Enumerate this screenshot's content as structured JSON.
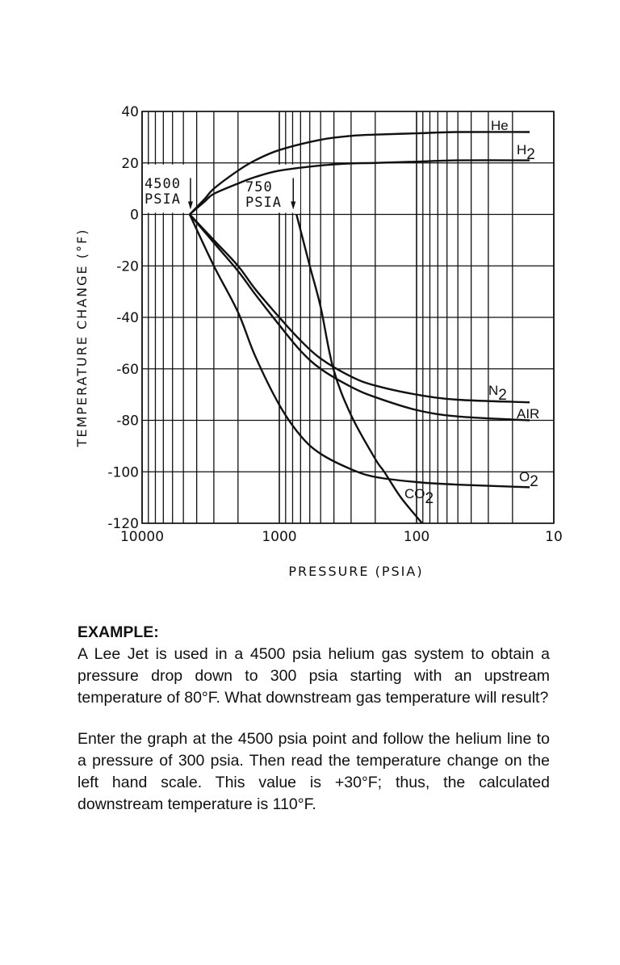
{
  "chart_data": {
    "type": "line",
    "xlabel": "PRESSURE (PSIA)",
    "ylabel": "TEMPERATURE CHANGE (°F)",
    "x_scale": "log",
    "x_reversed": true,
    "xlim": [
      10000,
      10
    ],
    "ylim": [
      -120,
      40
    ],
    "x_ticks": [
      "10000",
      "1000",
      "100",
      "10"
    ],
    "y_ticks": [
      "40",
      "20",
      "0",
      "-20",
      "-40",
      "-60",
      "-80",
      "-100",
      "-120"
    ],
    "grid": true,
    "annotations": [
      {
        "text": [
          "4500",
          "PSIA"
        ],
        "x": 4500,
        "y": 0
      },
      {
        "text": [
          "750",
          "PSIA"
        ],
        "x": 750,
        "y": 0
      }
    ],
    "series": [
      {
        "name": "He",
        "sub": "",
        "points": [
          [
            4500,
            0
          ],
          [
            3500,
            6
          ],
          [
            3000,
            10
          ],
          [
            2000,
            17
          ],
          [
            1500,
            21
          ],
          [
            1000,
            25
          ],
          [
            500,
            29
          ],
          [
            300,
            30.5
          ],
          [
            200,
            31
          ],
          [
            100,
            31.5
          ],
          [
            50,
            32
          ],
          [
            15,
            32
          ]
        ]
      },
      {
        "name": "H",
        "sub": "2",
        "points": [
          [
            4500,
            0
          ],
          [
            3500,
            5
          ],
          [
            3000,
            8
          ],
          [
            2000,
            12
          ],
          [
            1500,
            14.5
          ],
          [
            1000,
            17
          ],
          [
            500,
            19
          ],
          [
            300,
            19.8
          ],
          [
            200,
            20
          ],
          [
            100,
            20.5
          ],
          [
            50,
            21
          ],
          [
            15,
            21
          ]
        ]
      },
      {
        "name": "N",
        "sub": "2",
        "points": [
          [
            4500,
            0
          ],
          [
            3000,
            -10
          ],
          [
            2000,
            -20
          ],
          [
            1500,
            -29
          ],
          [
            1000,
            -40
          ],
          [
            700,
            -49
          ],
          [
            500,
            -56
          ],
          [
            300,
            -63
          ],
          [
            200,
            -66.5
          ],
          [
            100,
            -70
          ],
          [
            50,
            -72
          ],
          [
            15,
            -73
          ]
        ]
      },
      {
        "name": "AIR",
        "sub": "",
        "points": [
          [
            4500,
            0
          ],
          [
            3000,
            -11
          ],
          [
            2000,
            -22
          ],
          [
            1500,
            -31
          ],
          [
            1000,
            -43
          ],
          [
            700,
            -53
          ],
          [
            500,
            -60
          ],
          [
            300,
            -67
          ],
          [
            200,
            -71
          ],
          [
            100,
            -76
          ],
          [
            50,
            -78.5
          ],
          [
            15,
            -80
          ]
        ]
      },
      {
        "name": "O",
        "sub": "2",
        "points": [
          [
            4500,
            0
          ],
          [
            3000,
            -20
          ],
          [
            2000,
            -38
          ],
          [
            1500,
            -55
          ],
          [
            1000,
            -74
          ],
          [
            700,
            -86
          ],
          [
            500,
            -93
          ],
          [
            300,
            -99
          ],
          [
            200,
            -102
          ],
          [
            100,
            -104
          ],
          [
            50,
            -105
          ],
          [
            15,
            -106
          ]
        ]
      },
      {
        "name": "CO",
        "sub": "2",
        "points": [
          [
            750,
            0
          ],
          [
            600,
            -20
          ],
          [
            500,
            -36
          ],
          [
            404,
            -60
          ],
          [
            300,
            -78
          ],
          [
            200,
            -95
          ],
          [
            172,
            -100
          ],
          [
            130,
            -110
          ],
          [
            91,
            -120
          ]
        ]
      }
    ]
  },
  "text": {
    "heading": "EXAMPLE:",
    "paragraph1": "A Lee Jet is used in a 4500 psia helium gas system to obtain a pressure drop down to 300 psia starting with an upstream temperature of 80°F. What downstream gas temperature will result?",
    "paragraph2": "Enter the graph at the 4500 psia point and follow the helium line to a pressure of 300 psia. Then read the temperature change on the left hand scale. This value is +30°F; thus, the calculated downstream temperature is 110°F."
  }
}
